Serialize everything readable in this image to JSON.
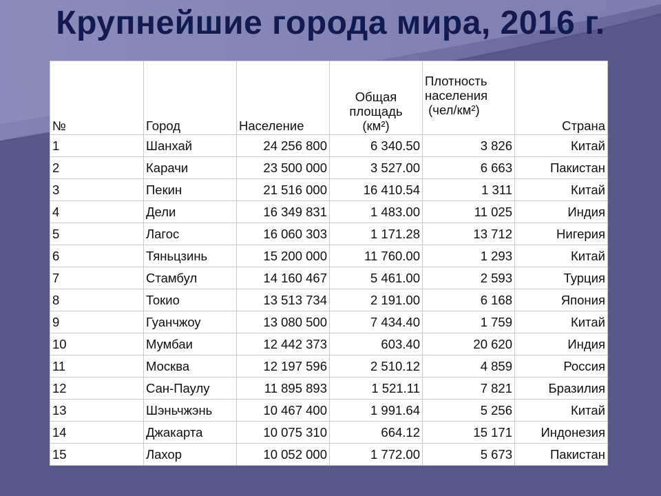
{
  "slide": {
    "title": "Крупнейшие города мира, 2016 г.",
    "colors": {
      "background": "#58588a",
      "title": "#121a52",
      "table_bg": "#ffffff"
    }
  },
  "table": {
    "headers": {
      "num": "№",
      "city": "Город",
      "population": "Население",
      "area": [
        "Общая",
        "площадь",
        "(км²)"
      ],
      "density": [
        "Плотность",
        "населения",
        " (чел/км²)"
      ],
      "country": "Страна"
    },
    "rows": [
      [
        "1",
        "Шанхай",
        "24 256 800",
        "6 340.50",
        "3 826",
        "Китай"
      ],
      [
        "2",
        "Карачи",
        "23 500 000",
        "3 527.00",
        "6 663",
        "Пакистан"
      ],
      [
        "3",
        "Пекин",
        "21 516 000",
        "16 410.54",
        "1 311",
        "Китай"
      ],
      [
        "4",
        "Дели",
        "16 349 831",
        "1 483.00",
        "11 025",
        "Индия"
      ],
      [
        "5",
        "Лагос",
        "16 060 303",
        "1 171.28",
        "13 712",
        "Нигерия"
      ],
      [
        "6",
        "Тяньцзинь",
        "15 200 000",
        "11 760.00",
        "1 293",
        "Китай"
      ],
      [
        "7",
        "Стамбул",
        "14 160 467",
        "5 461.00",
        "2 593",
        "Турция"
      ],
      [
        "8",
        "Токио",
        "13 513 734",
        "2 191.00",
        "6 168",
        "Япония"
      ],
      [
        "9",
        "Гуанчжоу",
        "13 080 500",
        "7 434.40",
        "1 759",
        "Китай"
      ],
      [
        "10",
        "Мумбаи",
        "12 442 373",
        "603.40",
        "20 620",
        "Индия"
      ],
      [
        "11",
        "Москва",
        "12 197 596",
        "2 510.12",
        "4 859",
        "Россия"
      ],
      [
        "12",
        "Сан-Паулу",
        "11 895 893",
        "1 521.11",
        "7 821",
        "Бразилия"
      ],
      [
        "13",
        "Шэньчжэнь",
        "10 467 400",
        "1 991.64",
        "5 256",
        "Китай"
      ],
      [
        "14",
        "Джакарта",
        "10 075 310",
        "664.12",
        "15 171",
        "Индонезия"
      ],
      [
        "15",
        "Лахор",
        "10 052 000",
        "1 772.00",
        "5 673",
        "Пакистан"
      ]
    ]
  }
}
